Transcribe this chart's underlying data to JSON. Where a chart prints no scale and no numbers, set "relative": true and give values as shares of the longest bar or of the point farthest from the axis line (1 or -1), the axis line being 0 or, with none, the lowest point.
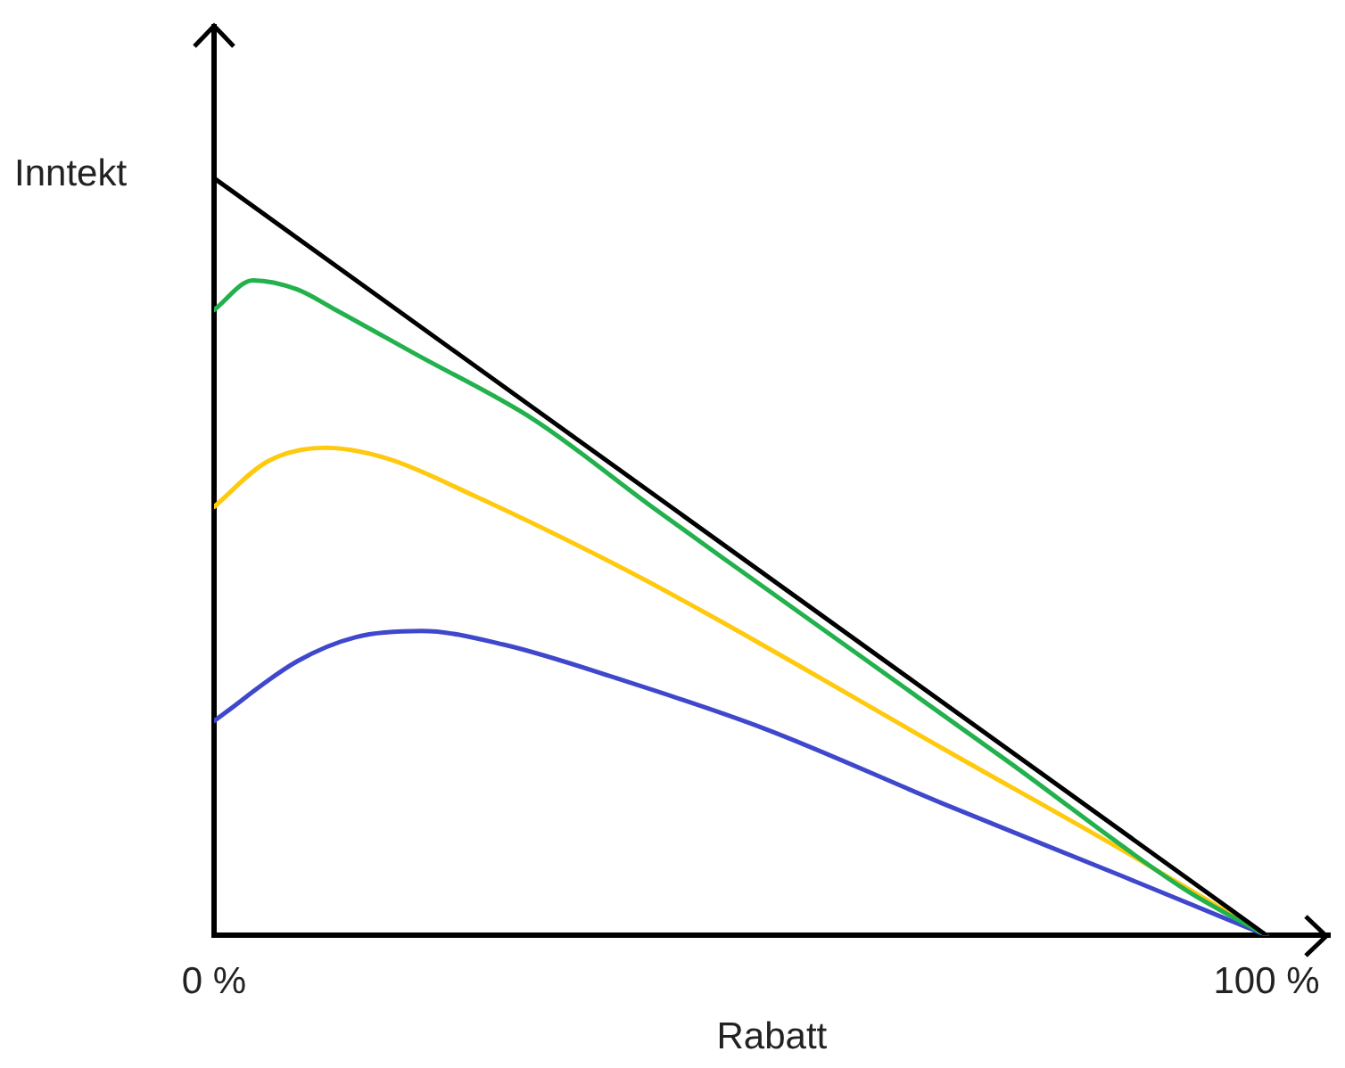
{
  "chart_data": {
    "type": "line",
    "xlabel": "Rabatt",
    "ylabel": "Inntekt",
    "relative": true,
    "xlim": [
      0,
      106
    ],
    "xticks": [
      {
        "value": 0,
        "label": "0 %"
      },
      {
        "value": 100,
        "label": "100 %"
      }
    ],
    "grid": false,
    "legend": false,
    "marker": "none",
    "line_style": "solid",
    "series": [
      {
        "color": "#000000",
        "x": [
          0,
          100
        ],
        "values": [
          1,
          0
        ]
      },
      {
        "color": "#22b14c",
        "x": [
          0,
          3.7,
          7.9,
          11.3,
          19.1,
          30.4,
          41.6,
          49.7,
          75.4,
          92.2,
          100
        ],
        "values": [
          0.826,
          0.865,
          0.853,
          0.828,
          0.768,
          0.681,
          0.566,
          0.485,
          0.23,
          0.061,
          0
        ]
      },
      {
        "color": "#ffc90e",
        "x": [
          0,
          5.1,
          10.6,
          16.4,
          24.8,
          38.8,
          47.2,
          69.6,
          86.5,
          100
        ],
        "values": [
          0.566,
          0.626,
          0.644,
          0.63,
          0.58,
          0.485,
          0.422,
          0.244,
          0.111,
          0
        ]
      },
      {
        "color": "#3f48cc",
        "x": [
          0,
          7.9,
          13.5,
          19.7,
          27.5,
          38.8,
          52.3,
          69.6,
          86.5,
          100
        ],
        "values": [
          0.283,
          0.362,
          0.394,
          0.402,
          0.384,
          0.337,
          0.273,
          0.172,
          0.077,
          0
        ]
      }
    ]
  }
}
